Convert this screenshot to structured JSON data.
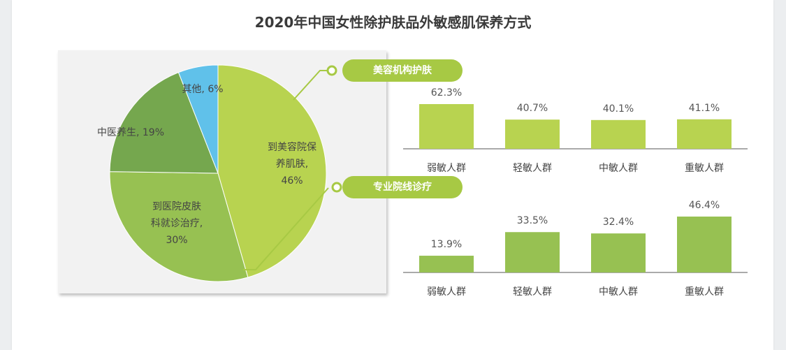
{
  "title": "2020年中国女性除护肤品外敏感肌保养方式",
  "chart_data": [
    {
      "type": "pie",
      "slices": [
        {
          "label": "到美容院保养肌肤",
          "value": 46,
          "display": [
            "到美容院保",
            "养肌肤,",
            "46%"
          ],
          "color": "#b8d350"
        },
        {
          "label": "到医院皮肤科就诊治疗",
          "value": 30,
          "display": [
            "到医院皮肤",
            "科就诊治疗,",
            "30%"
          ],
          "color": "#97c152"
        },
        {
          "label": "中医养生",
          "value": 19,
          "display": [
            "中医养生, 19%"
          ],
          "color": "#75a74e"
        },
        {
          "label": "其他",
          "value": 6,
          "display": [
            "其他, 6%"
          ],
          "color": "#60c1ea"
        }
      ]
    },
    {
      "type": "bar",
      "title": "美容机构护肤",
      "categories": [
        "弱敏人群",
        "轻敏人群",
        "中敏人群",
        "重敏人群"
      ],
      "values": [
        62.3,
        40.7,
        40.1,
        41.1
      ],
      "value_labels": [
        "62.3%",
        "40.7%",
        "40.1%",
        "41.1%"
      ],
      "color": "#b8d350"
    },
    {
      "type": "bar",
      "title": "专业院线诊疗",
      "categories": [
        "弱敏人群",
        "轻敏人群",
        "中敏人群",
        "重敏人群"
      ],
      "values": [
        13.9,
        33.5,
        32.4,
        46.4
      ],
      "value_labels": [
        "13.9%",
        "33.5%",
        "32.4%",
        "46.4%"
      ],
      "color": "#97c152"
    }
  ]
}
